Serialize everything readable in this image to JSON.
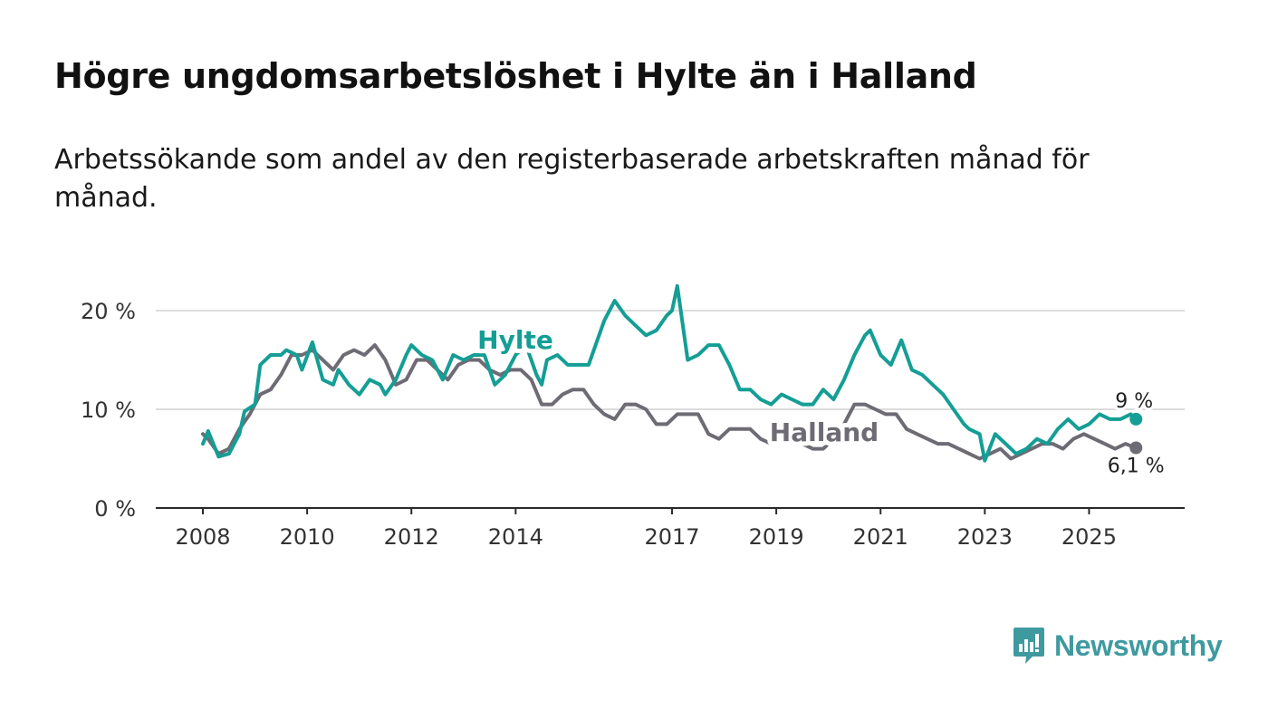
{
  "header": {
    "title": "Högre ungdomsarbetslöshet i Hylte än i Halland",
    "subtitle": "Arbetssökande som andel av den registerbaserade arbetskraften månad för månad."
  },
  "chart_data": {
    "type": "line",
    "title": "Högre ungdomsarbetslöshet i Hylte än i Halland",
    "subtitle": "Arbetssökande som andel av den registerbaserade arbetskraften månad för månad.",
    "xlabel": "",
    "ylabel": "",
    "x_range": [
      2008,
      2026.2
    ],
    "ylim": [
      0,
      25
    ],
    "grid": true,
    "y_ticks": [
      0,
      10,
      20
    ],
    "y_tick_labels": [
      "0 %",
      "10 %",
      "20 %"
    ],
    "x_ticks": [
      2008,
      2010,
      2012,
      2014,
      2017,
      2019,
      2021,
      2023,
      2025
    ],
    "x_tick_labels": [
      "2008",
      "2010",
      "2012",
      "2014",
      "2017",
      "2019",
      "2021",
      "2023",
      "2025"
    ],
    "series": [
      {
        "name": "Hylte",
        "color": "#149e95",
        "label": "Hylte",
        "end_label": "9 %",
        "x": [
          2008.0,
          2008.1,
          2008.3,
          2008.5,
          2008.7,
          2008.8,
          2009.0,
          2009.1,
          2009.3,
          2009.5,
          2009.6,
          2009.8,
          2009.9,
          2010.1,
          2010.3,
          2010.5,
          2010.6,
          2010.8,
          2011.0,
          2011.2,
          2011.4,
          2011.5,
          2011.7,
          2011.9,
          2012.0,
          2012.2,
          2012.4,
          2012.6,
          2012.8,
          2013.0,
          2013.2,
          2013.4,
          2013.6,
          2013.8,
          2013.9,
          2014.0,
          2014.2,
          2014.4,
          2014.5,
          2014.6,
          2014.8,
          2015.0,
          2015.2,
          2015.4,
          2015.6,
          2015.7,
          2015.9,
          2016.1,
          2016.3,
          2016.5,
          2016.7,
          2016.9,
          2017.0,
          2017.1,
          2017.3,
          2017.5,
          2017.7,
          2017.9,
          2018.1,
          2018.3,
          2018.5,
          2018.7,
          2018.9,
          2019.1,
          2019.3,
          2019.5,
          2019.7,
          2019.9,
          2020.1,
          2020.3,
          2020.5,
          2020.7,
          2020.8,
          2021.0,
          2021.1,
          2021.2,
          2021.4,
          2021.6,
          2021.8,
          2022.0,
          2022.2,
          2022.4,
          2022.6,
          2022.7,
          2022.9,
          2023.0,
          2023.2,
          2023.4,
          2023.6,
          2023.8,
          2024.0,
          2024.2,
          2024.4,
          2024.6,
          2024.8,
          2025.0,
          2025.2,
          2025.4,
          2025.6,
          2025.8,
          2025.9
        ],
        "values": [
          6.5,
          7.8,
          5.2,
          5.5,
          7.5,
          9.8,
          10.5,
          14.5,
          15.5,
          15.5,
          16.0,
          15.5,
          14.0,
          16.8,
          13.0,
          12.5,
          14.0,
          12.5,
          11.5,
          13.0,
          12.5,
          11.5,
          13.0,
          15.5,
          16.5,
          15.5,
          15.0,
          13.0,
          15.5,
          15.0,
          15.5,
          15.5,
          12.5,
          13.5,
          14.5,
          15.5,
          16.5,
          13.5,
          12.5,
          15.0,
          15.5,
          14.5,
          14.5,
          14.5,
          17.5,
          19.0,
          21.0,
          19.5,
          18.5,
          17.5,
          18.0,
          19.5,
          20.0,
          22.5,
          15.0,
          15.5,
          16.5,
          16.5,
          14.5,
          12.0,
          12.0,
          11.0,
          10.5,
          11.5,
          11.0,
          10.5,
          10.5,
          12.0,
          11.0,
          13.0,
          15.5,
          17.5,
          18.0,
          15.5,
          15.0,
          14.5,
          17.0,
          14.0,
          13.5,
          12.5,
          11.5,
          10.0,
          8.5,
          8.0,
          7.5,
          4.8,
          7.5,
          6.5,
          5.5,
          6.0,
          7.0,
          6.5,
          8.0,
          9.0,
          8.0,
          8.5,
          9.5,
          9.0,
          9.0,
          9.5,
          9.0
        ]
      },
      {
        "name": "Halland",
        "color": "#6e6b74",
        "label": "Halland",
        "end_label": "6,1 %",
        "x": [
          2008.0,
          2008.1,
          2008.3,
          2008.5,
          2008.7,
          2008.9,
          2009.1,
          2009.3,
          2009.5,
          2009.7,
          2009.9,
          2010.1,
          2010.3,
          2010.5,
          2010.7,
          2010.9,
          2011.1,
          2011.3,
          2011.5,
          2011.7,
          2011.9,
          2012.1,
          2012.3,
          2012.5,
          2012.7,
          2012.9,
          2013.1,
          2013.3,
          2013.5,
          2013.7,
          2013.9,
          2014.1,
          2014.3,
          2014.5,
          2014.7,
          2014.9,
          2015.1,
          2015.3,
          2015.5,
          2015.7,
          2015.9,
          2016.1,
          2016.3,
          2016.5,
          2016.7,
          2016.9,
          2017.1,
          2017.3,
          2017.5,
          2017.7,
          2017.9,
          2018.1,
          2018.3,
          2018.5,
          2018.7,
          2018.9,
          2019.1,
          2019.3,
          2019.5,
          2019.7,
          2019.9,
          2020.1,
          2020.3,
          2020.5,
          2020.7,
          2020.9,
          2021.1,
          2021.3,
          2021.5,
          2021.7,
          2021.9,
          2022.1,
          2022.3,
          2022.5,
          2022.7,
          2022.9,
          2023.1,
          2023.3,
          2023.5,
          2023.7,
          2023.9,
          2024.1,
          2024.3,
          2024.5,
          2024.7,
          2024.9,
          2025.1,
          2025.3,
          2025.5,
          2025.7,
          2025.9
        ],
        "values": [
          7.5,
          7.0,
          5.5,
          6.0,
          8.0,
          9.5,
          11.5,
          12.0,
          13.5,
          15.5,
          15.5,
          16.0,
          15.0,
          14.0,
          15.5,
          16.0,
          15.5,
          16.5,
          15.0,
          12.5,
          13.0,
          15.0,
          15.0,
          14.0,
          13.0,
          14.5,
          15.0,
          15.0,
          14.0,
          13.5,
          14.0,
          14.0,
          13.0,
          10.5,
          10.5,
          11.5,
          12.0,
          12.0,
          10.5,
          9.5,
          9.0,
          10.5,
          10.5,
          10.0,
          8.5,
          8.5,
          9.5,
          9.5,
          9.5,
          7.5,
          7.0,
          8.0,
          8.0,
          8.0,
          7.0,
          6.5,
          7.0,
          7.0,
          6.5,
          6.0,
          6.0,
          7.0,
          8.5,
          10.5,
          10.5,
          10.0,
          9.5,
          9.5,
          8.0,
          7.5,
          7.0,
          6.5,
          6.5,
          6.0,
          5.5,
          5.0,
          5.5,
          6.0,
          5.0,
          5.5,
          6.0,
          6.5,
          6.5,
          6.0,
          7.0,
          7.5,
          7.0,
          6.5,
          6.0,
          6.5,
          6.1
        ]
      }
    ]
  },
  "logo": {
    "text": "Newsworthy"
  }
}
